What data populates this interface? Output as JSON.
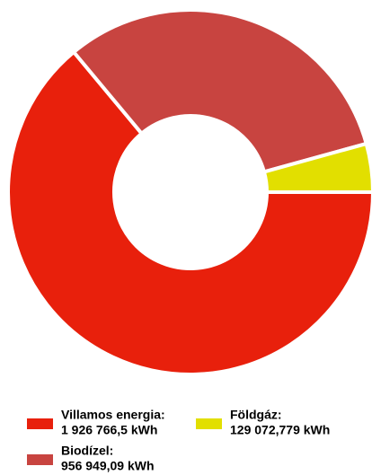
{
  "chart_data": {
    "type": "pie",
    "categories": [
      "Villamos energia:",
      "Biodízel:",
      "Földgáz:"
    ],
    "values": [
      1926766.5,
      956949.09,
      129072.779
    ],
    "value_labels": [
      "1 926 766,5 kWh",
      "956 949,09 kWh",
      "129 072,779 kWh"
    ],
    "colors": [
      "#e8200c",
      "#c84440",
      "#e2df00"
    ]
  }
}
